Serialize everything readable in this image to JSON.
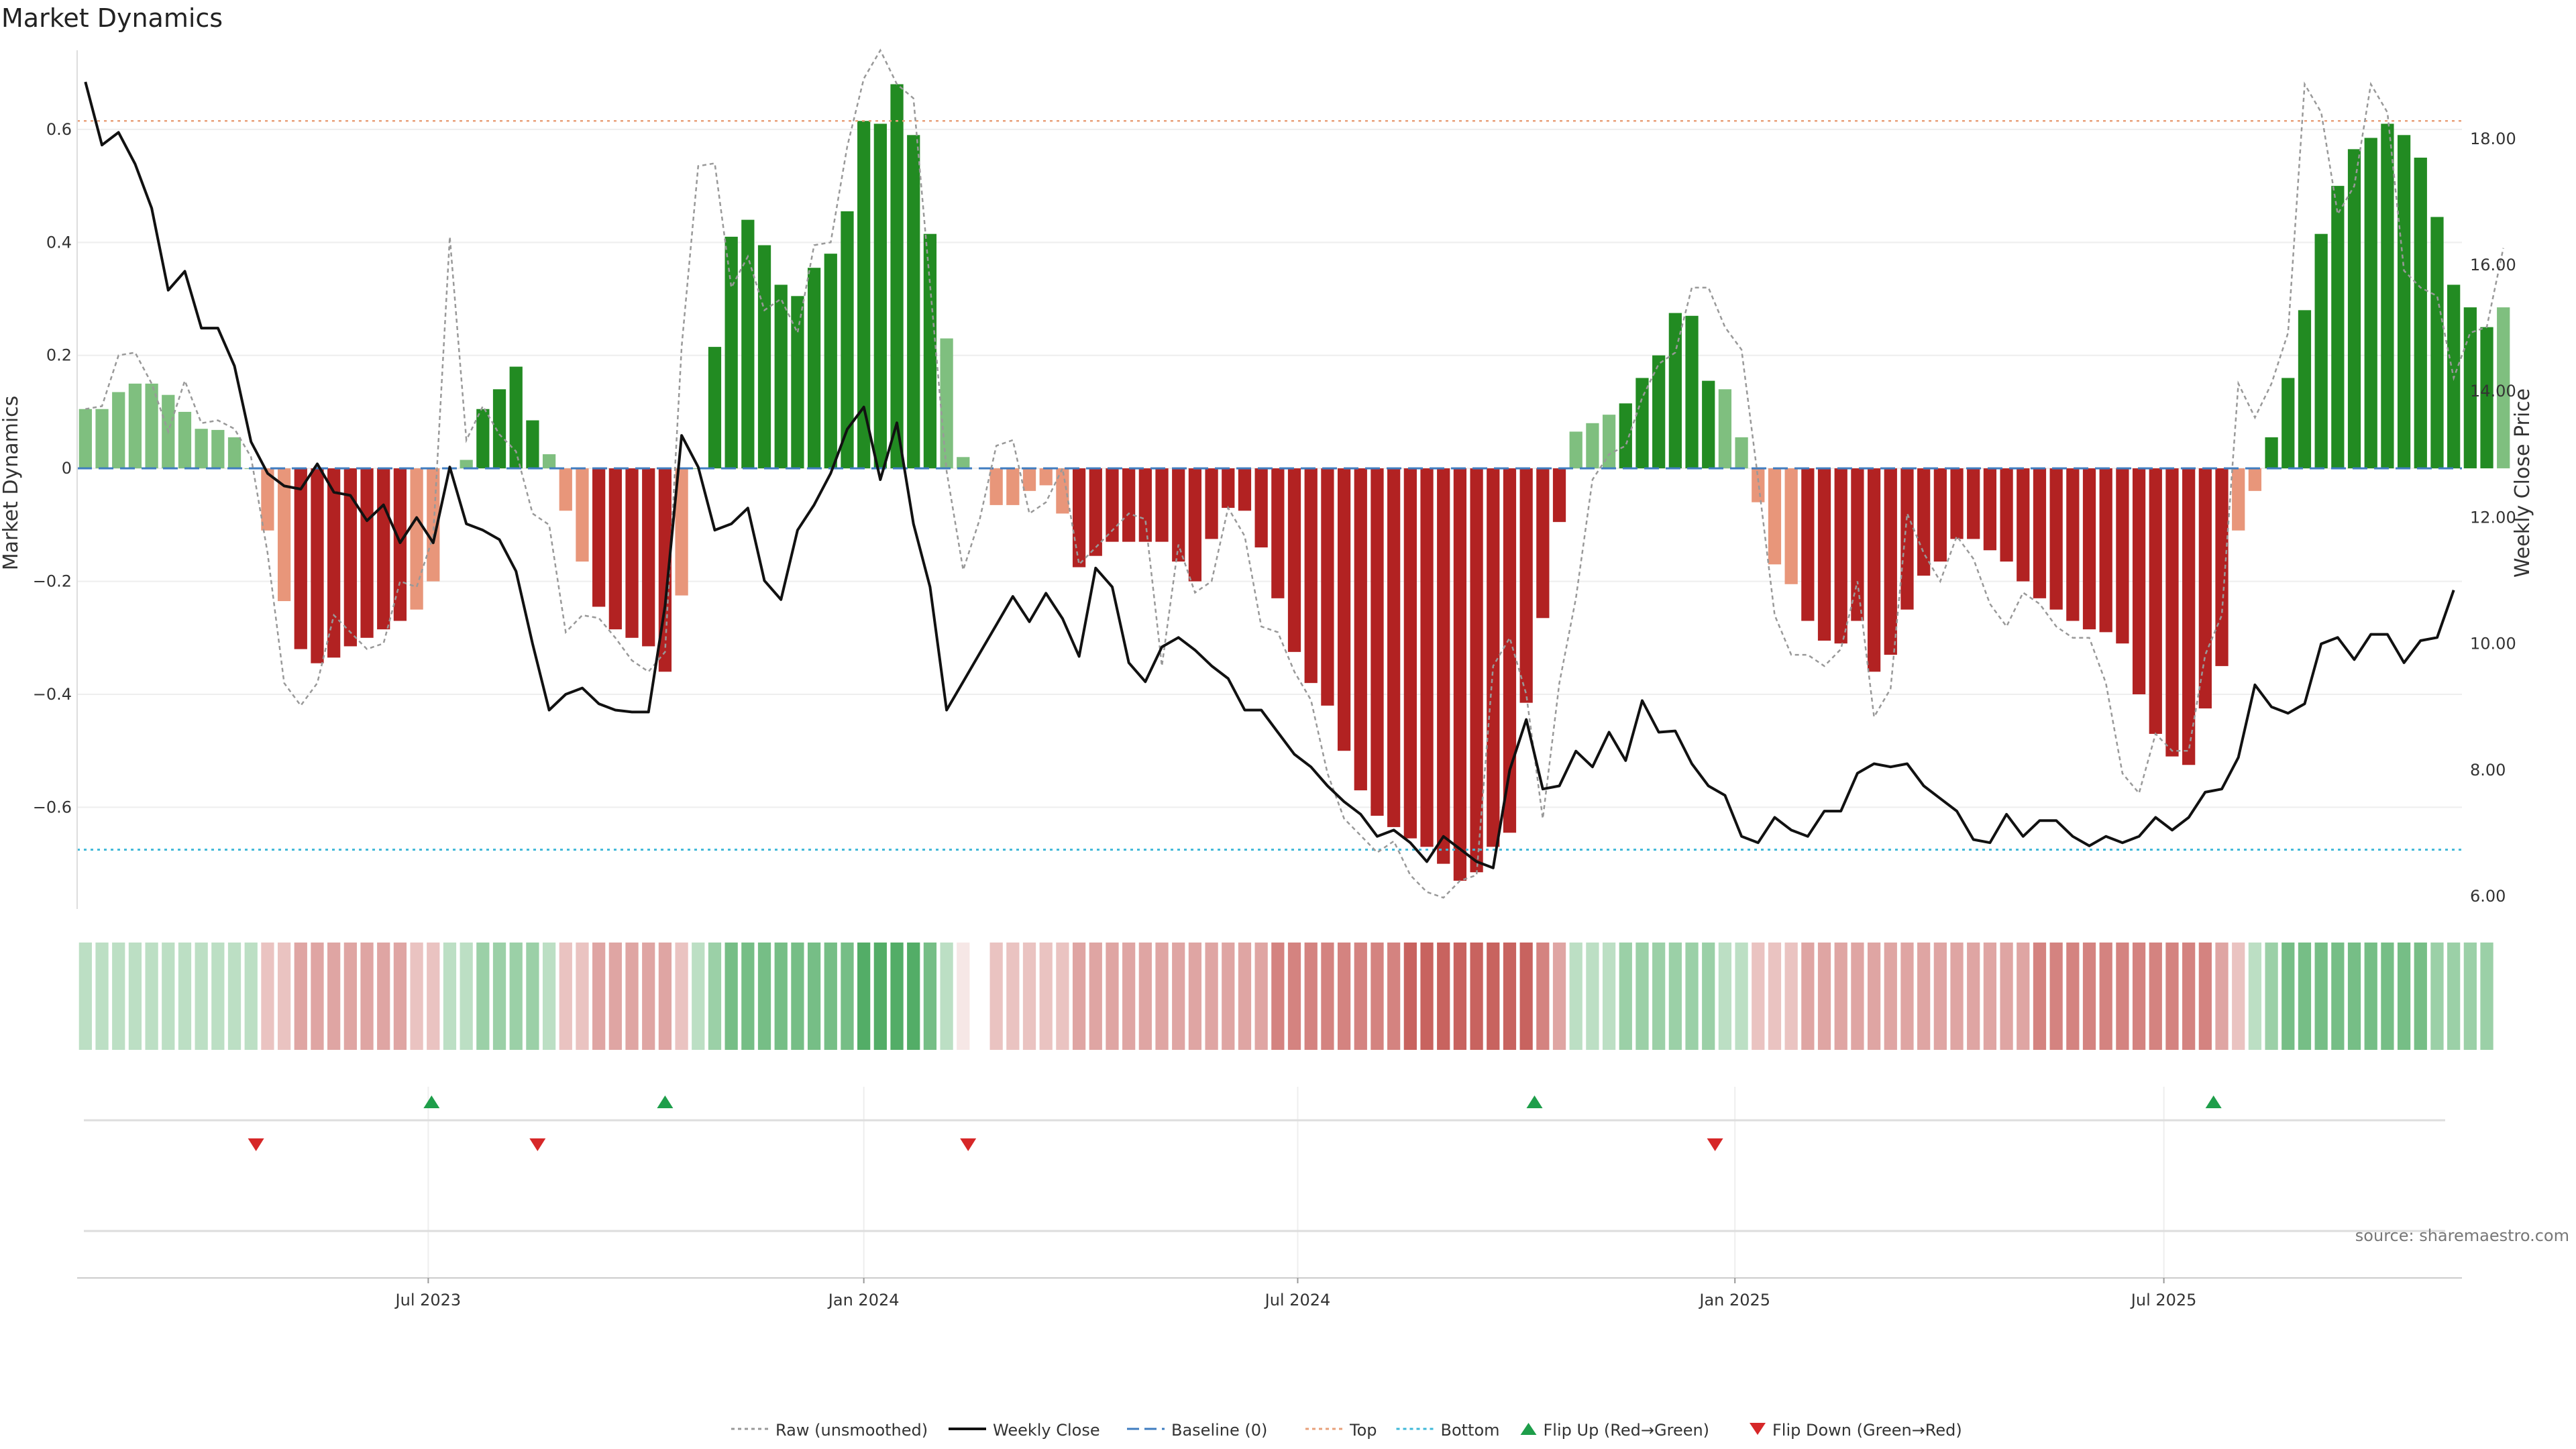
{
  "chart_data": {
    "type": "bar",
    "title": "Market Dynamics",
    "ylabel": "Market Dynamics",
    "y2label": "Weekly Close Price",
    "ylim": [
      -0.78,
      0.74
    ],
    "y2lim": [
      5.8,
      19.4
    ],
    "yticks": [
      0.6,
      0.4,
      0.2,
      0,
      -0.2,
      -0.4,
      -0.6
    ],
    "ytick_labels": [
      "0.6",
      "0.4",
      "0.2",
      "0",
      "−0.2",
      "−0.4",
      "−0.6"
    ],
    "y2ticks": [
      18,
      16,
      14,
      12,
      10,
      8,
      6
    ],
    "y2tick_labels": [
      "18.00",
      "16.00",
      "14.00",
      "12.00",
      "10.00",
      "8.00",
      "6.00"
    ],
    "xlim": [
      0,
      144
    ],
    "xticks": [
      {
        "x": 21.2,
        "label": "Jul 2023"
      },
      {
        "x": 47.5,
        "label": "Jan 2024"
      },
      {
        "x": 73.7,
        "label": "Jul 2024"
      },
      {
        "x": 100.1,
        "label": "Jan 2025"
      },
      {
        "x": 126.0,
        "label": "Jul 2025"
      }
    ],
    "top_level": 0.615,
    "bottom_level": -0.675,
    "momentum": [
      0.105,
      0.105,
      0.135,
      0.15,
      0.15,
      0.13,
      0.1,
      0.07,
      0.068,
      0.055,
      0,
      -0.11,
      -0.235,
      -0.32,
      -0.345,
      -0.335,
      -0.315,
      -0.3,
      -0.285,
      -0.27,
      -0.25,
      -0.2,
      0,
      0.015,
      0.105,
      0.14,
      0.18,
      0.085,
      0.025,
      -0.075,
      -0.165,
      -0.245,
      -0.285,
      -0.3,
      -0.315,
      -0.36,
      -0.225,
      0,
      0.215,
      0.41,
      0.44,
      0.395,
      0.325,
      0.305,
      0.355,
      0.38,
      0.455,
      0.615,
      0.61,
      0.68,
      0.59,
      0.415,
      0.23,
      0.02,
      null,
      -0.065,
      -0.065,
      -0.04,
      -0.03,
      -0.08,
      -0.175,
      -0.155,
      -0.13,
      -0.13,
      -0.13,
      -0.13,
      -0.165,
      -0.2,
      -0.125,
      -0.07,
      -0.075,
      -0.14,
      -0.23,
      -0.325,
      -0.38,
      -0.42,
      -0.5,
      -0.57,
      -0.615,
      -0.635,
      -0.655,
      -0.67,
      -0.7,
      -0.73,
      -0.715,
      -0.67,
      -0.645,
      -0.415,
      -0.265,
      -0.095,
      0.065,
      0.08,
      0.095,
      0.115,
      0.16,
      0.2,
      0.275,
      0.27,
      0.155,
      0.14,
      0.055,
      -0.06,
      -0.17,
      -0.205,
      -0.27,
      -0.305,
      -0.31,
      -0.27,
      -0.36,
      -0.33,
      -0.25,
      -0.19,
      -0.165,
      -0.125,
      -0.125,
      -0.145,
      -0.165,
      -0.2,
      -0.23,
      -0.25,
      -0.27,
      -0.285,
      -0.29,
      -0.31,
      -0.4,
      -0.47,
      -0.51,
      -0.525,
      -0.425,
      -0.35,
      -0.11,
      -0.04,
      0.055,
      0.16,
      0.28,
      0.415,
      0.5,
      0.565,
      0.585,
      0.61,
      0.59,
      0.55,
      0.445,
      0.325,
      0.285,
      0.25,
      0.285
    ],
    "raw": [
      0.105,
      0.11,
      0.2,
      0.205,
      0.15,
      0.065,
      0.155,
      0.08,
      0.085,
      0.07,
      0.02,
      -0.15,
      -0.38,
      -0.42,
      -0.38,
      -0.26,
      -0.29,
      -0.32,
      -0.31,
      -0.2,
      -0.21,
      -0.12,
      0.41,
      0.05,
      0.11,
      0.06,
      0.03,
      -0.08,
      -0.1,
      -0.29,
      -0.26,
      -0.265,
      -0.3,
      -0.34,
      -0.36,
      -0.325,
      0.215,
      0.535,
      0.54,
      0.32,
      0.375,
      0.28,
      0.3,
      0.24,
      0.395,
      0.4,
      0.57,
      0.69,
      0.74,
      0.68,
      0.655,
      0.325,
      -0.005,
      -0.18,
      -0.09,
      0.04,
      0.05,
      -0.08,
      -0.06,
      0,
      -0.17,
      -0.14,
      -0.11,
      -0.08,
      -0.09,
      -0.35,
      -0.135,
      -0.22,
      -0.2,
      -0.07,
      -0.12,
      -0.28,
      -0.29,
      -0.36,
      -0.41,
      -0.54,
      -0.62,
      -0.65,
      -0.68,
      -0.66,
      -0.72,
      -0.75,
      -0.76,
      -0.73,
      -0.72,
      -0.35,
      -0.3,
      -0.4,
      -0.62,
      -0.38,
      -0.23,
      -0.02,
      0.025,
      0.04,
      0.125,
      0.185,
      0.205,
      0.32,
      0.32,
      0.25,
      0.21,
      -0.02,
      -0.26,
      -0.33,
      -0.33,
      -0.35,
      -0.32,
      -0.2,
      -0.44,
      -0.39,
      -0.08,
      -0.15,
      -0.2,
      -0.12,
      -0.16,
      -0.24,
      -0.28,
      -0.22,
      -0.24,
      -0.28,
      -0.3,
      -0.3,
      -0.38,
      -0.54,
      -0.575,
      -0.47,
      -0.5,
      -0.5,
      -0.33,
      -0.26,
      0.15,
      0.09,
      0.15,
      0.24,
      0.68,
      0.63,
      0.45,
      0.5,
      0.68,
      0.63,
      0.35,
      0.32,
      0.305,
      0.16,
      0.24,
      0.25,
      0.39
    ],
    "weekly_close": [
      18.9,
      17.9,
      18.1,
      17.6,
      16.9,
      15.6,
      15.9,
      15.0,
      15.0,
      14.4,
      13.2,
      12.7,
      12.5,
      12.45,
      12.85,
      12.4,
      12.35,
      11.95,
      12.2,
      11.6,
      12.0,
      11.6,
      12.8,
      11.9,
      11.8,
      11.65,
      11.15,
      10.0,
      8.95,
      9.2,
      9.3,
      9.05,
      8.95,
      8.92,
      8.92,
      10.6,
      13.3,
      12.8,
      11.8,
      11.9,
      12.15,
      11.0,
      10.7,
      11.8,
      12.2,
      12.7,
      13.4,
      13.75,
      12.6,
      13.5,
      11.9,
      10.9,
      8.95,
      9.4,
      9.85,
      10.3,
      10.75,
      10.35,
      10.8,
      10.4,
      9.8,
      11.2,
      10.9,
      9.7,
      9.4,
      9.95,
      10.1,
      9.9,
      9.65,
      9.45,
      8.95,
      8.95,
      8.6,
      8.25,
      8.05,
      7.75,
      7.5,
      7.3,
      6.95,
      7.05,
      6.85,
      6.55,
      6.95,
      6.75,
      6.55,
      6.45,
      8.0,
      8.8,
      7.7,
      7.75,
      8.3,
      8.05,
      8.6,
      8.15,
      9.1,
      8.6,
      8.62,
      8.1,
      7.75,
      7.6,
      6.95,
      6.85,
      7.25,
      7.05,
      6.95,
      7.35,
      7.35,
      7.95,
      8.1,
      8.05,
      8.1,
      7.75,
      7.55,
      7.35,
      6.9,
      6.85,
      7.3,
      6.95,
      7.2,
      7.2,
      6.95,
      6.8,
      6.95,
      6.85,
      6.95,
      7.25,
      7.05,
      7.25,
      7.65,
      7.7,
      8.2,
      9.35,
      9.0,
      8.9,
      9.05,
      10.0,
      10.1,
      9.75,
      10.15,
      10.15,
      9.7,
      10.05,
      10.1,
      10.85
    ],
    "heat_levels": [
      1,
      1,
      1,
      1,
      1,
      1,
      1,
      1,
      1,
      1,
      1,
      -1,
      -1,
      -2,
      -2,
      -2,
      -2,
      -2,
      -2,
      -2,
      -1,
      -1,
      1,
      1,
      2,
      2,
      2,
      2,
      1,
      -1,
      -1,
      -2,
      -2,
      -2,
      -2,
      -2,
      -1,
      1,
      2,
      3,
      3,
      3,
      3,
      3,
      3,
      3,
      3,
      4,
      4,
      4,
      4,
      3,
      1,
      0,
      0,
      -1,
      -1,
      -1,
      -1,
      -1,
      -2,
      -2,
      -2,
      -2,
      -2,
      -2,
      -2,
      -2,
      -2,
      -2,
      -2,
      -2,
      -3,
      -3,
      -3,
      -3,
      -3,
      -3,
      -3,
      -3,
      -4,
      -4,
      -4,
      -4,
      -4,
      -4,
      -4,
      -4,
      -3,
      -2,
      1,
      1,
      1,
      2,
      2,
      2,
      2,
      2,
      2,
      1,
      1,
      -1,
      -1,
      -1,
      -2,
      -2,
      -2,
      -2,
      -2,
      -2,
      -2,
      -2,
      -2,
      -2,
      -2,
      -2,
      -2,
      -2,
      -3,
      -3,
      -3,
      -3,
      -3,
      -3,
      -3,
      -3,
      -3,
      -3,
      -3,
      -2,
      -1,
      1,
      2,
      3,
      3,
      3,
      3,
      3,
      3,
      3,
      3,
      3,
      2,
      2,
      2,
      2
    ],
    "flip_up_x": [
      21.4,
      35.5,
      88.0,
      129.0
    ],
    "flip_down_x": [
      10.8,
      27.8,
      53.8,
      98.9
    ],
    "legend": [
      {
        "key": "raw",
        "label": "Raw (unsmoothed)",
        "color": "#999999"
      },
      {
        "key": "close",
        "label": "Weekly Close",
        "color": "#111111"
      },
      {
        "key": "baseline",
        "label": "Baseline (0)",
        "color": "#3f7cc0"
      },
      {
        "key": "top",
        "label": "Top",
        "color": "#e8a07a"
      },
      {
        "key": "bottom",
        "label": "Bottom",
        "color": "#3fb8d8"
      },
      {
        "key": "flip_up",
        "label": "Flip Up (Red→Green)",
        "color": "#1e9e4a"
      },
      {
        "key": "flip_down",
        "label": "Flip Down (Green→Red)",
        "color": "#d62728"
      }
    ],
    "source": "source: sharemaestro.com"
  },
  "colors": {
    "strong_green": "#228b22",
    "light_green": "#7fbf7f",
    "strong_red": "#b22222",
    "light_red": "#e8967a",
    "flip_up": "#1e9e4a",
    "flip_down": "#d62728"
  }
}
